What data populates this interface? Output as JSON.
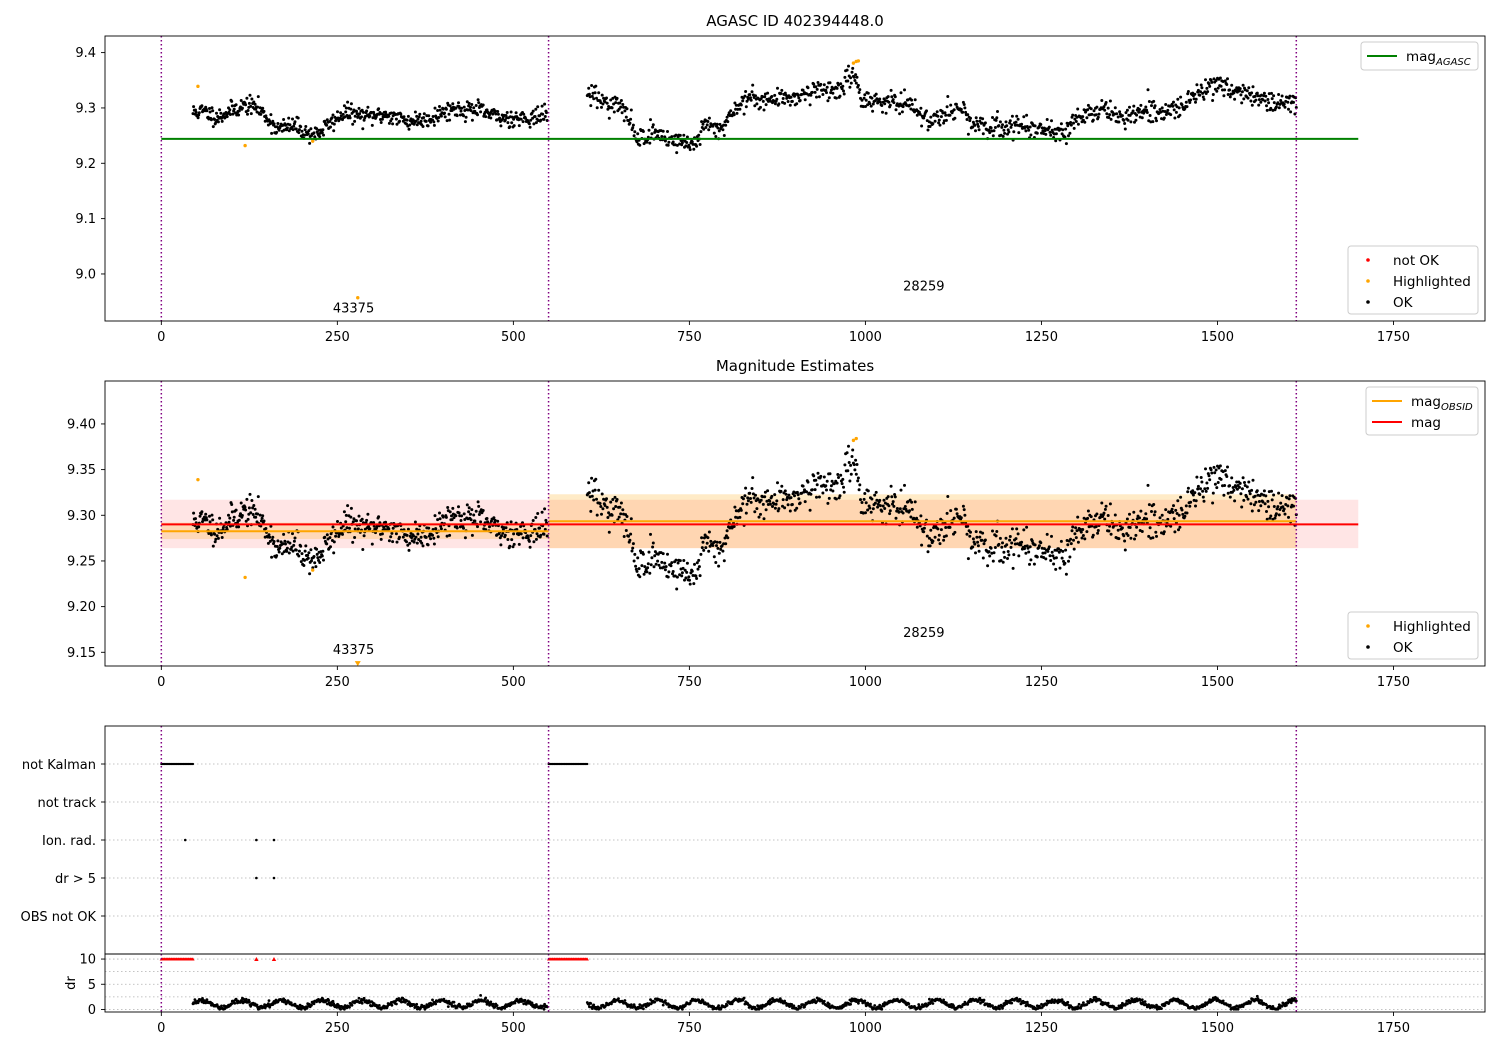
{
  "chart_data": [
    {
      "type": "scatter",
      "title": "AGASC ID 402394448.0",
      "xlim": [
        -80,
        1880
      ],
      "ylim": [
        8.915,
        9.43
      ],
      "xticks": [
        0,
        250,
        500,
        750,
        1000,
        1250,
        1500,
        1750
      ],
      "yticks": [
        9.0,
        9.1,
        9.2,
        9.3,
        9.4
      ],
      "ytick_labels": [
        "9.0",
        "9.1",
        "9.2",
        "9.3",
        "9.4"
      ],
      "obsid_boundaries": [
        0,
        550,
        1612
      ],
      "obsid_labels": [
        {
          "text": "43375",
          "x": 273,
          "y": 8.93
        },
        {
          "text": "28259",
          "x": 1083,
          "y": 8.97
        }
      ],
      "lines": [
        {
          "name": "mag_AGASC",
          "y": 9.244,
          "x0": 0,
          "x1": 1700,
          "color": "#008000"
        }
      ],
      "legend_top": {
        "position": "top-right",
        "entries": [
          {
            "label": "mag",
            "sub": "AGASC",
            "color": "#008000"
          }
        ]
      },
      "legend_bottom": {
        "position": "lower-right",
        "entries": [
          {
            "label": "not OK",
            "color": "#ff0000"
          },
          {
            "label": "Highlighted",
            "color": "#ffa500"
          },
          {
            "label": "OK",
            "color": "#000000"
          }
        ]
      },
      "highlighted_points": [
        [
          52,
          9.339
        ],
        [
          119,
          9.232
        ],
        [
          279,
          8.957
        ],
        [
          215,
          9.24
        ],
        [
          983,
          9.381
        ],
        [
          987,
          9.384
        ],
        [
          990,
          9.385
        ]
      ],
      "series": [
        {
          "name": "OK",
          "color": "#000000",
          "marker_size": 2.2,
          "mode": "dense",
          "segments": [
            {
              "x0": 45,
              "x1": 548,
              "n": 560,
              "noise": 0.008,
              "y": [
                [
                  45,
                  9.292
                ],
                [
                  60,
                  9.294
                ],
                [
                  80,
                  9.283
                ],
                [
                  100,
                  9.296
                ],
                [
                  120,
                  9.305
                ],
                [
                  135,
                  9.302
                ],
                [
                  150,
                  9.283
                ],
                [
                  165,
                  9.262
                ],
                [
                  190,
                  9.268
                ],
                [
                  205,
                  9.255
                ],
                [
                  220,
                  9.252
                ],
                [
                  240,
                  9.272
                ],
                [
                  260,
                  9.292
                ],
                [
                  290,
                  9.284
                ],
                [
                  320,
                  9.288
                ],
                [
                  350,
                  9.276
                ],
                [
                  380,
                  9.281
                ],
                [
                  410,
                  9.298
                ],
                [
                  450,
                  9.296
                ],
                [
                  480,
                  9.282
                ],
                [
                  520,
                  9.282
                ],
                [
                  548,
                  9.287
                ]
              ]
            },
            {
              "x0": 605,
              "x1": 1612,
              "n": 1000,
              "noise": 0.009,
              "y": [
                [
                  605,
                  9.33
                ],
                [
                  630,
                  9.31
                ],
                [
                  650,
                  9.305
                ],
                [
                  665,
                  9.28
                ],
                [
                  675,
                  9.245
                ],
                [
                  700,
                  9.255
                ],
                [
                  730,
                  9.24
                ],
                [
                  760,
                  9.235
                ],
                [
                  770,
                  9.268
                ],
                [
                  795,
                  9.262
                ],
                [
                  815,
                  9.3
                ],
                [
                  835,
                  9.318
                ],
                [
                  870,
                  9.315
                ],
                [
                  900,
                  9.32
                ],
                [
                  935,
                  9.335
                ],
                [
                  960,
                  9.33
                ],
                [
                  985,
                  9.362
                ],
                [
                  995,
                  9.315
                ],
                [
                  1040,
                  9.31
                ],
                [
                  1070,
                  9.3
                ],
                [
                  1090,
                  9.275
                ],
                [
                  1115,
                  9.295
                ],
                [
                  1140,
                  9.3
                ],
                [
                  1150,
                  9.265
                ],
                [
                  1175,
                  9.265
                ],
                [
                  1220,
                  9.268
                ],
                [
                  1260,
                  9.262
                ],
                [
                  1285,
                  9.255
                ],
                [
                  1305,
                  9.285
                ],
                [
                  1340,
                  9.3
                ],
                [
                  1360,
                  9.28
                ],
                [
                  1390,
                  9.292
                ],
                [
                  1420,
                  9.29
                ],
                [
                  1450,
                  9.305
                ],
                [
                  1475,
                  9.33
                ],
                [
                  1500,
                  9.345
                ],
                [
                  1540,
                  9.325
                ],
                [
                  1575,
                  9.31
                ],
                [
                  1612,
                  9.305
                ]
              ]
            }
          ]
        }
      ]
    },
    {
      "type": "scatter",
      "title": "Magnitude Estimates",
      "xlim": [
        -80,
        1880
      ],
      "ylim": [
        9.135,
        9.447
      ],
      "xticks": [
        0,
        250,
        500,
        750,
        1000,
        1250,
        1500,
        1750
      ],
      "yticks": [
        9.15,
        9.2,
        9.25,
        9.3,
        9.35,
        9.4
      ],
      "ytick_labels": [
        "9.15",
        "9.20",
        "9.25",
        "9.30",
        "9.35",
        "9.40"
      ],
      "obsid_boundaries": [
        0,
        550,
        1612
      ],
      "obsid_labels": [
        {
          "text": "43375",
          "x": 273,
          "y": 9.148
        },
        {
          "text": "28259",
          "x": 1083,
          "y": 9.167
        }
      ],
      "bands": [
        {
          "x0": 0,
          "x1": 1700,
          "y0": 9.264,
          "y1": 9.317,
          "color": "#ff0000",
          "opacity": 0.1
        },
        {
          "x0": 0,
          "x1": 550,
          "y0": 9.274,
          "y1": 9.292,
          "color": "#ffa500",
          "opacity": 0.2
        },
        {
          "x0": 550,
          "x1": 1612,
          "y0": 9.264,
          "y1": 9.323,
          "color": "#ffa500",
          "opacity": 0.22
        }
      ],
      "lines": [
        {
          "name": "mag_OBSID",
          "y": 9.2825,
          "x0": 0,
          "x1": 550,
          "color": "#ffa500"
        },
        {
          "name": "mag_OBSID",
          "y": 9.2935,
          "x0": 550,
          "x1": 1612,
          "color": "#ffa500"
        },
        {
          "name": "mag",
          "y": 9.29,
          "x0": 0,
          "x1": 1700,
          "color": "#ff0000"
        }
      ],
      "legend_top": {
        "position": "top-right",
        "entries": [
          {
            "label": "mag",
            "sub": "OBSID",
            "color": "#ffa500"
          },
          {
            "label": "mag",
            "sub": "",
            "color": "#ff0000"
          }
        ]
      },
      "legend_bottom": {
        "position": "lower-right",
        "entries": [
          {
            "label": "Highlighted",
            "color": "#ffa500"
          },
          {
            "label": "OK",
            "color": "#000000"
          }
        ]
      },
      "highlighted_points": [
        [
          52,
          9.339
        ],
        [
          119,
          9.232
        ],
        [
          215,
          9.24
        ],
        [
          983,
          9.382
        ],
        [
          987,
          9.384
        ]
      ],
      "highlighted_triangles": [
        [
          279,
          9.137
        ]
      ],
      "series": [
        {
          "name": "OK",
          "color": "#000000",
          "marker_size": 2.2,
          "mode": "dense",
          "segments": [
            {
              "x0": 45,
              "x1": 548,
              "n": 560,
              "noise": 0.008,
              "y": [
                [
                  45,
                  9.292
                ],
                [
                  60,
                  9.294
                ],
                [
                  80,
                  9.283
                ],
                [
                  100,
                  9.296
                ],
                [
                  120,
                  9.305
                ],
                [
                  135,
                  9.302
                ],
                [
                  150,
                  9.283
                ],
                [
                  165,
                  9.262
                ],
                [
                  190,
                  9.268
                ],
                [
                  205,
                  9.255
                ],
                [
                  220,
                  9.252
                ],
                [
                  240,
                  9.272
                ],
                [
                  260,
                  9.292
                ],
                [
                  290,
                  9.284
                ],
                [
                  320,
                  9.288
                ],
                [
                  350,
                  9.276
                ],
                [
                  380,
                  9.281
                ],
                [
                  410,
                  9.298
                ],
                [
                  450,
                  9.296
                ],
                [
                  480,
                  9.282
                ],
                [
                  520,
                  9.282
                ],
                [
                  548,
                  9.287
                ]
              ]
            },
            {
              "x0": 605,
              "x1": 1612,
              "n": 1000,
              "noise": 0.009,
              "y": [
                [
                  605,
                  9.33
                ],
                [
                  630,
                  9.31
                ],
                [
                  650,
                  9.305
                ],
                [
                  665,
                  9.28
                ],
                [
                  675,
                  9.245
                ],
                [
                  700,
                  9.255
                ],
                [
                  730,
                  9.24
                ],
                [
                  760,
                  9.235
                ],
                [
                  770,
                  9.268
                ],
                [
                  795,
                  9.262
                ],
                [
                  815,
                  9.3
                ],
                [
                  835,
                  9.318
                ],
                [
                  870,
                  9.315
                ],
                [
                  900,
                  9.32
                ],
                [
                  935,
                  9.335
                ],
                [
                  960,
                  9.33
                ],
                [
                  985,
                  9.362
                ],
                [
                  995,
                  9.315
                ],
                [
                  1040,
                  9.31
                ],
                [
                  1070,
                  9.3
                ],
                [
                  1090,
                  9.275
                ],
                [
                  1115,
                  9.295
                ],
                [
                  1140,
                  9.3
                ],
                [
                  1150,
                  9.265
                ],
                [
                  1175,
                  9.265
                ],
                [
                  1220,
                  9.268
                ],
                [
                  1260,
                  9.262
                ],
                [
                  1285,
                  9.255
                ],
                [
                  1305,
                  9.285
                ],
                [
                  1340,
                  9.3
                ],
                [
                  1360,
                  9.28
                ],
                [
                  1390,
                  9.292
                ],
                [
                  1420,
                  9.29
                ],
                [
                  1450,
                  9.305
                ],
                [
                  1475,
                  9.33
                ],
                [
                  1500,
                  9.345
                ],
                [
                  1540,
                  9.325
                ],
                [
                  1575,
                  9.31
                ],
                [
                  1612,
                  9.305
                ]
              ]
            }
          ]
        }
      ]
    },
    {
      "type": "scatter",
      "title": "",
      "xlim": [
        -80,
        1880
      ],
      "categories": [
        "not Kalman",
        "not track",
        "Ion. rad.",
        "dr > 5",
        "OBS not OK"
      ],
      "obsid_boundaries": [
        0,
        550,
        1612
      ],
      "flags": [
        {
          "category": "not Kalman",
          "x_ranges": [
            [
              0,
              45
            ],
            [
              550,
              605
            ]
          ]
        },
        {
          "category": "not track",
          "x_ranges": []
        },
        {
          "category": "Ion. rad.",
          "x_points": [
            34,
            135,
            160
          ]
        },
        {
          "category": "dr > 5",
          "x_points": [
            135,
            160
          ]
        },
        {
          "category": "OBS not OK",
          "x_ranges": []
        }
      ]
    },
    {
      "type": "scatter",
      "title": "",
      "ylabel": "dr",
      "xlim": [
        -80,
        1880
      ],
      "ylim": [
        -0.5,
        11
      ],
      "xticks": [
        0,
        250,
        500,
        750,
        1000,
        1250,
        1500,
        1750
      ],
      "yticks": [
        0,
        5,
        10
      ],
      "ytick_labels": [
        "0",
        "5",
        "10"
      ],
      "obsid_boundaries": [
        0,
        550,
        1612
      ],
      "clipped_points_at": 10,
      "clipped_x_ranges": [
        [
          0,
          45
        ],
        [
          550,
          605
        ]
      ],
      "clipped_x_points": [
        135,
        160
      ],
      "series": [
        {
          "name": "dr",
          "color": "#000000",
          "mode": "dense",
          "segments": [
            {
              "x0": 45,
              "x1": 548,
              "n": 560,
              "base": 1.1,
              "amp": 0.7
            },
            {
              "x0": 605,
              "x1": 1612,
              "n": 1000,
              "base": 1.1,
              "amp": 0.8
            }
          ]
        }
      ]
    }
  ]
}
